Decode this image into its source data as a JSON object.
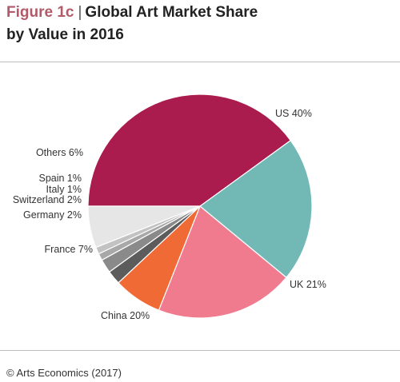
{
  "header": {
    "figure_label": "Figure 1c",
    "title_line1": "Global Art Market Share",
    "title_line2": "by Value in 2016"
  },
  "source": "© Arts Economics (2017)",
  "chart_data": {
    "type": "pie",
    "title": "Global Art Market Share by Value in 2016",
    "slices": [
      {
        "label": "US 40%",
        "name": "US",
        "value": 40,
        "color": "#ab1c4e"
      },
      {
        "label": "UK 21%",
        "name": "UK",
        "value": 21,
        "color": "#72b9b6"
      },
      {
        "label": "China 20%",
        "name": "China",
        "value": 20,
        "color": "#f07b8e"
      },
      {
        "label": "France 7%",
        "name": "France",
        "value": 7,
        "color": "#f06a35"
      },
      {
        "label": "Germany 2%",
        "name": "Germany",
        "value": 2,
        "color": "#5c5c5c"
      },
      {
        "label": "Switzerland 2%",
        "name": "Switzerland",
        "value": 2,
        "color": "#8a8a8a"
      },
      {
        "label": "Italy 1%",
        "name": "Italy",
        "value": 1,
        "color": "#a8a8a8"
      },
      {
        "label": "Spain 1%",
        "name": "Spain",
        "value": 1,
        "color": "#c2c2c2"
      },
      {
        "label": "Others 6%",
        "name": "Others",
        "value": 6,
        "color": "#e6e6e6"
      }
    ],
    "start_angle": "9 o'clock",
    "direction": "clockwise",
    "legend": "none"
  }
}
